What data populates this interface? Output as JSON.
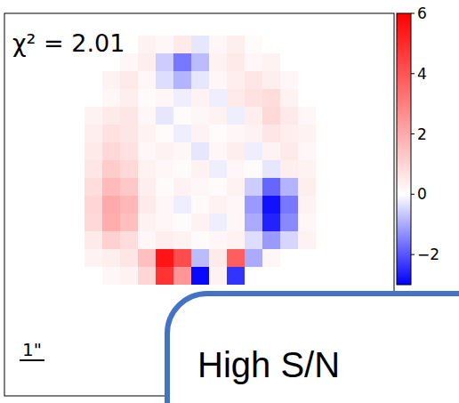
{
  "chart_data": {
    "type": "heatmap",
    "annotation": "χ² = 2.01",
    "scale_bar_label": "1\"",
    "overlay_label": "High S/N",
    "tick_labels": false,
    "cells": [
      [
        null,
        null,
        null,
        0.3,
        0.2,
        0.5,
        -0.3,
        0.2,
        0.4,
        0.1,
        null,
        null,
        null
      ],
      [
        null,
        null,
        0.2,
        0.4,
        -0.6,
        -1.6,
        -0.8,
        0.3,
        0.5,
        0.2,
        0.3,
        null,
        null
      ],
      [
        null,
        0.3,
        0.5,
        0.2,
        -0.4,
        -0.9,
        -0.3,
        0.2,
        0.4,
        0.6,
        0.4,
        0.2,
        null
      ],
      [
        null,
        0.2,
        0.4,
        0.1,
        0.2,
        -0.2,
        0.3,
        -0.2,
        0.5,
        0.7,
        0.8,
        0.3,
        null
      ],
      [
        0.3,
        0.5,
        0.6,
        0.2,
        -0.3,
        0.1,
        0.2,
        0.3,
        -0.2,
        0.4,
        0.9,
        0.5,
        0.2
      ],
      [
        0.4,
        0.7,
        0.6,
        0.3,
        0.1,
        -0.2,
        0.3,
        0.1,
        0.2,
        0.3,
        0.6,
        0.4,
        0.3
      ],
      [
        0.5,
        0.9,
        0.7,
        0.2,
        0.3,
        0.2,
        -0.3,
        0.2,
        0.4,
        -0.2,
        0.3,
        0.5,
        0.2
      ],
      [
        0.6,
        1.2,
        0.9,
        0.3,
        0.2,
        0.1,
        0.3,
        -0.2,
        0.2,
        0.1,
        -0.3,
        0.4,
        0.3
      ],
      [
        0.8,
        1.6,
        1.3,
        0.4,
        0.1,
        0.3,
        0.2,
        0.1,
        0.3,
        -0.6,
        -1.8,
        -0.9,
        0.4
      ],
      [
        1.0,
        2.0,
        1.7,
        0.5,
        0.2,
        -0.2,
        0.1,
        0.3,
        0.2,
        -1.2,
        -2.8,
        -1.6,
        0.3
      ],
      [
        0.9,
        1.9,
        1.5,
        0.3,
        0.2,
        0.1,
        0.3,
        -0.2,
        0.2,
        -1.0,
        -2.6,
        -1.4,
        0.2
      ],
      [
        0.5,
        1.1,
        0.8,
        0.2,
        0.4,
        0.3,
        0.1,
        0.2,
        0.3,
        -0.4,
        -1.2,
        -0.5,
        0.3
      ],
      [
        0.3,
        0.4,
        0.6,
        1.5,
        5.5,
        4.2,
        -0.8,
        0.5,
        3.8,
        -1.0,
        0.2,
        null,
        null
      ],
      [
        null,
        0.2,
        0.3,
        1.0,
        4.8,
        2.5,
        -2.9,
        0.3,
        -2.4,
        null,
        null,
        null,
        null
      ]
    ],
    "colorbar": {
      "range": [
        -3,
        6
      ],
      "ticks": [
        {
          "value": -2,
          "label": "−2"
        },
        0,
        2,
        4,
        6
      ]
    }
  }
}
